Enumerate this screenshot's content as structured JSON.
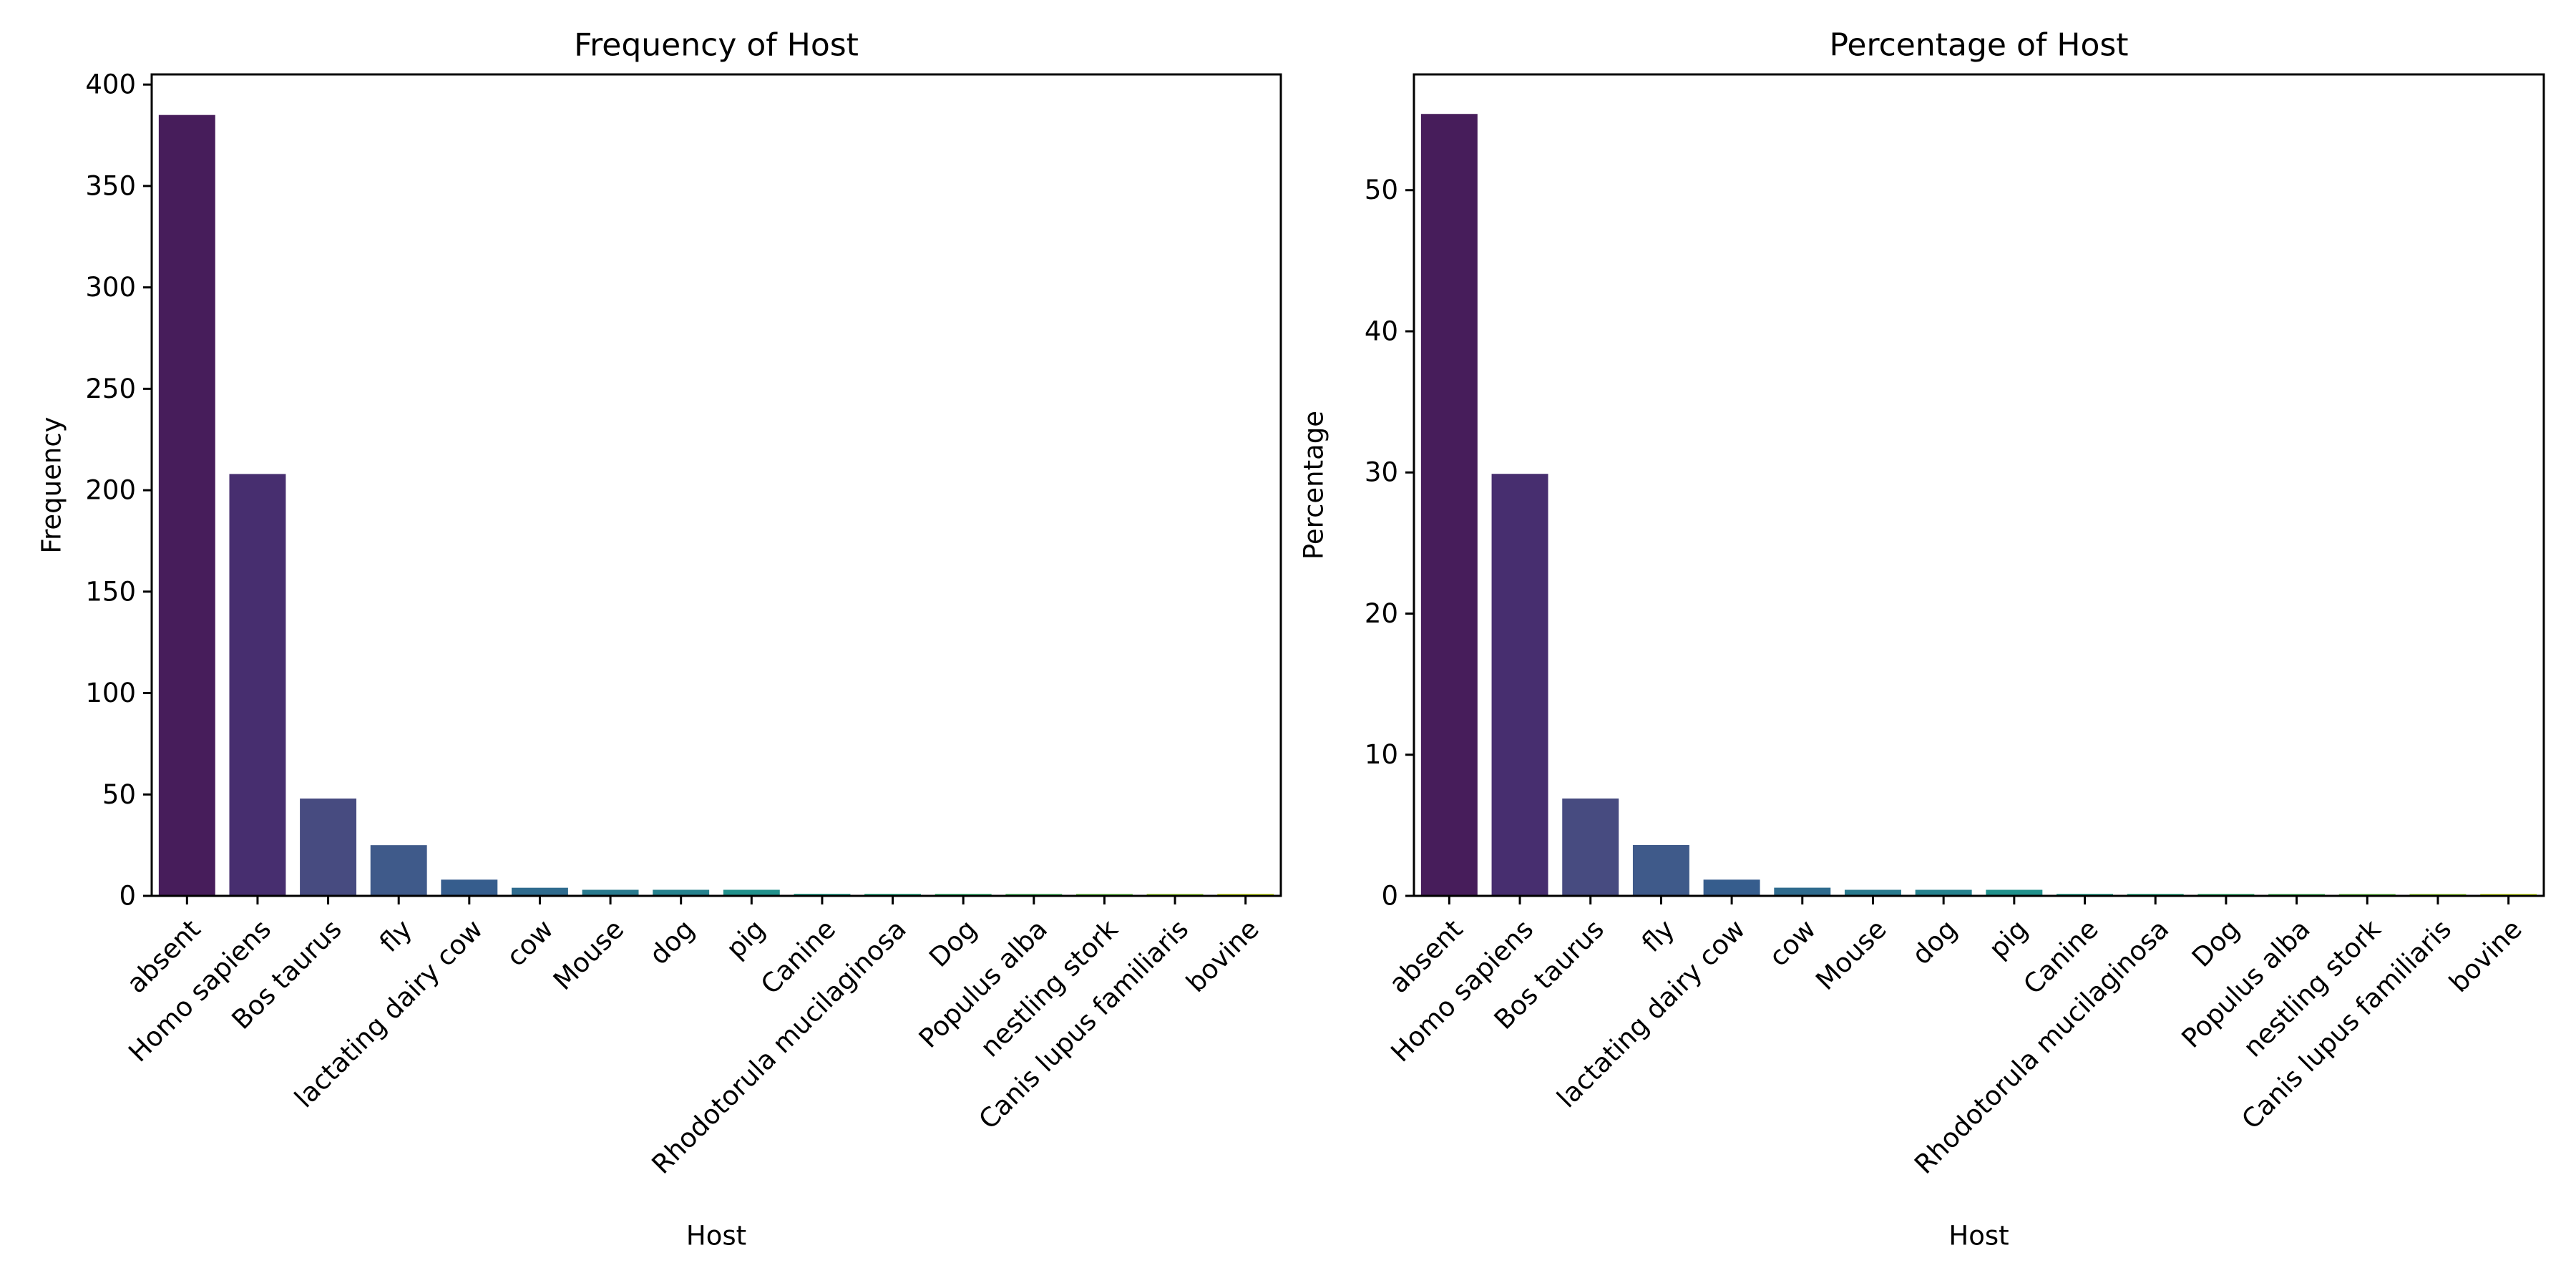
{
  "chart_data": [
    {
      "type": "bar",
      "title": "Frequency of Host",
      "xlabel": "Host",
      "ylabel": "Frequency",
      "categories": [
        "absent",
        "Homo sapiens",
        "Bos taurus",
        "fly",
        "lactating dairy cow",
        "cow",
        "Mouse",
        "dog",
        "pig",
        "Canine",
        "Rhodotorula mucilaginosa",
        "Dog",
        "Populus alba",
        "nestling stork",
        "Canis lupus familiaris",
        "bovine"
      ],
      "values": [
        385,
        208,
        48,
        25,
        8,
        4,
        3,
        3,
        3,
        1,
        1,
        1,
        1,
        1,
        1,
        1
      ],
      "ylim": [
        0,
        405
      ],
      "yticks": [
        0,
        50,
        100,
        150,
        200,
        250,
        300,
        350,
        400
      ],
      "grid": false,
      "colors": [
        "#471d5b",
        "#472e6f",
        "#474b80",
        "#3f5a8a",
        "#365d8d",
        "#2f6b8e",
        "#297a8e",
        "#26828e",
        "#21918c",
        "#1fa188",
        "#27ad81",
        "#3bbb75",
        "#54c568",
        "#75d054",
        "#9dd93b",
        "#c8e020"
      ]
    },
    {
      "type": "bar",
      "title": "Percentage of Host",
      "xlabel": "Host",
      "ylabel": "Percentage",
      "categories": [
        "absent",
        "Homo sapiens",
        "Bos taurus",
        "fly",
        "lactating dairy cow",
        "cow",
        "Mouse",
        "dog",
        "pig",
        "Canine",
        "Rhodotorula mucilaginosa",
        "Dog",
        "Populus alba",
        "nestling stork",
        "Canis lupus familiaris",
        "bovine"
      ],
      "values": [
        55.4,
        29.9,
        6.9,
        3.6,
        1.15,
        0.58,
        0.43,
        0.43,
        0.43,
        0.14,
        0.14,
        0.14,
        0.14,
        0.14,
        0.14,
        0.14
      ],
      "ylim": [
        0,
        58.2
      ],
      "yticks": [
        0,
        10,
        20,
        30,
        40,
        50
      ],
      "grid": false,
      "colors": [
        "#471d5b",
        "#472e6f",
        "#474b80",
        "#3f5a8a",
        "#365d8d",
        "#2f6b8e",
        "#297a8e",
        "#26828e",
        "#21918c",
        "#1fa188",
        "#27ad81",
        "#3bbb75",
        "#54c568",
        "#75d054",
        "#9dd93b",
        "#c8e020"
      ]
    }
  ]
}
